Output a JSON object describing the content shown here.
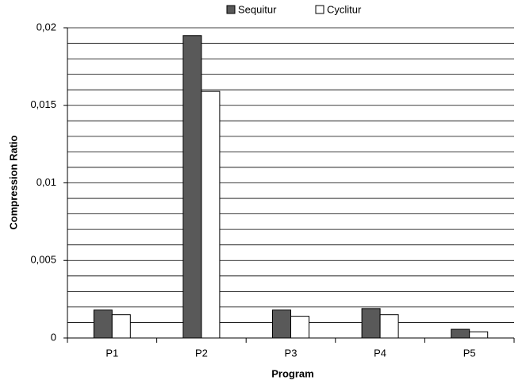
{
  "chart_data": {
    "type": "bar",
    "x_label": "Program",
    "y_label": "Compression Ratio",
    "categories": [
      "P1",
      "P2",
      "P3",
      "P4",
      "P5"
    ],
    "series": [
      {
        "name": "Sequitur",
        "color": "#595959",
        "values": [
          0.0018,
          0.0195,
          0.0018,
          0.0019,
          0.00056
        ]
      },
      {
        "name": "Cyclitur",
        "color": "#ffffff",
        "values": [
          0.0015,
          0.0159,
          0.0014,
          0.0015,
          0.0004
        ]
      }
    ],
    "ylim": [
      0,
      0.02
    ],
    "yticks": [
      0,
      {
        "value": 0.005,
        "label": "0,005"
      },
      {
        "value": 0.01,
        "label": "0,01"
      },
      {
        "value": 0.015,
        "label": "0,015"
      },
      {
        "value": 0.02,
        "label": "0,02"
      }
    ],
    "grid_lines": [
      0,
      0.001,
      0.002,
      0.003,
      0.004,
      0.005,
      0.006,
      0.007,
      0.008,
      0.009,
      0.01,
      0.011,
      0.012,
      0.013,
      0.014,
      0.015,
      0.016,
      0.017,
      0.018,
      0.019,
      0.02
    ],
    "grid": true,
    "legend": "top"
  }
}
